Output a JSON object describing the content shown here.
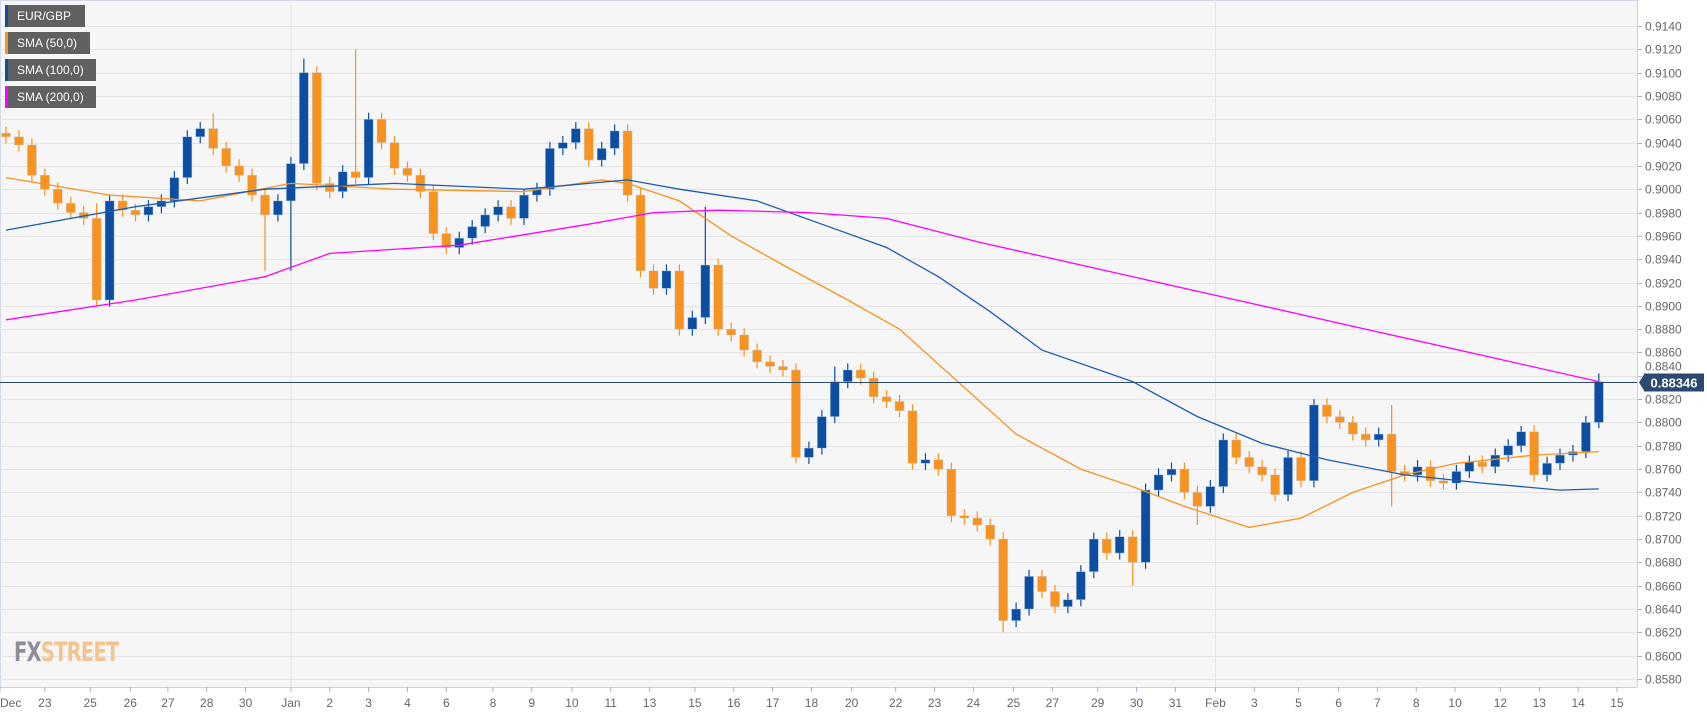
{
  "legend": [
    {
      "label": "EUR/GBP",
      "color": "#0b4ea2"
    },
    {
      "label": "SMA (50,0)",
      "color": "#f7931e"
    },
    {
      "label": "SMA (100,0)",
      "color": "#0b4ea2"
    },
    {
      "label": "SMA (200,0)",
      "color": "#ff00ff"
    }
  ],
  "logo": {
    "part1": "FX",
    "part2": "STREET"
  },
  "chart_data": {
    "type": "candlestick",
    "symbol": "EUR/GBP",
    "timeframe_note": "approximate bars read from screenshot",
    "current_price_label": "0.88346",
    "current_price": 0.88346,
    "ylim": [
      0.857,
      0.915
    ],
    "y_ticks": [
      "0.9140",
      "0.9120",
      "0.9100",
      "0.9080",
      "0.9060",
      "0.9040",
      "0.9020",
      "0.9000",
      "0.8980",
      "0.8960",
      "0.8940",
      "0.8920",
      "0.8900",
      "0.8880",
      "0.8860",
      "0.8840",
      "0.8820",
      "0.8800",
      "0.8780",
      "0.8760",
      "0.8740",
      "0.8720",
      "0.8700",
      "0.8680",
      "0.8660",
      "0.8640",
      "0.8620",
      "0.8600",
      "0.8580"
    ],
    "x_ticks": [
      {
        "label": "Dec",
        "bar": -0.5
      },
      {
        "label": "23",
        "bar": 3
      },
      {
        "label": "25",
        "bar": 6.5
      },
      {
        "label": "26",
        "bar": 9.6
      },
      {
        "label": "27",
        "bar": 12.5
      },
      {
        "label": "28",
        "bar": 15.5
      },
      {
        "label": "30",
        "bar": 18.5
      },
      {
        "label": "Jan",
        "bar": 22
      },
      {
        "label": "2",
        "bar": 25
      },
      {
        "label": "3",
        "bar": 28
      },
      {
        "label": "4",
        "bar": 31
      },
      {
        "label": "6",
        "bar": 34
      },
      {
        "label": "8",
        "bar": 37.6
      },
      {
        "label": "9",
        "bar": 40.6
      },
      {
        "label": "10",
        "bar": 43.7
      },
      {
        "label": "11",
        "bar": 46.7
      },
      {
        "label": "13",
        "bar": 49.7
      },
      {
        "label": "15",
        "bar": 53.2
      },
      {
        "label": "16",
        "bar": 56.2
      },
      {
        "label": "17",
        "bar": 59.2
      },
      {
        "label": "18",
        "bar": 62.2
      },
      {
        "label": "20",
        "bar": 65.3
      },
      {
        "label": "22",
        "bar": 68.7
      },
      {
        "label": "23",
        "bar": 71.7
      },
      {
        "label": "24",
        "bar": 74.7
      },
      {
        "label": "25",
        "bar": 77.8
      },
      {
        "label": "27",
        "bar": 80.8
      },
      {
        "label": "29",
        "bar": 84.3
      },
      {
        "label": "30",
        "bar": 87.3
      },
      {
        "label": "31",
        "bar": 90.3
      },
      {
        "label": "Feb",
        "bar": 93.4
      },
      {
        "label": "3",
        "bar": 96.4
      },
      {
        "label": "5",
        "bar": 99.8
      },
      {
        "label": "6",
        "bar": 102.9
      },
      {
        "label": "7",
        "bar": 105.9
      },
      {
        "label": "8",
        "bar": 108.9
      },
      {
        "label": "10",
        "bar": 111.9
      },
      {
        "label": "12",
        "bar": 115.4
      },
      {
        "label": "13",
        "bar": 118.4
      },
      {
        "label": "14",
        "bar": 121.4
      },
      {
        "label": "15",
        "bar": 124.4
      }
    ],
    "first_open": 0.9048,
    "closes": [
      0.9045,
      0.9038,
      0.9012,
      0.9,
      0.8988,
      0.898,
      0.8975,
      0.8905,
      0.899,
      0.8982,
      0.8978,
      0.8985,
      0.899,
      0.901,
      0.9045,
      0.9052,
      0.9035,
      0.902,
      0.9012,
      0.8995,
      0.8978,
      0.899,
      0.9022,
      0.91,
      0.9005,
      0.8998,
      0.9015,
      0.901,
      0.906,
      0.904,
      0.9018,
      0.9012,
      0.8998,
      0.8962,
      0.895,
      0.8958,
      0.8968,
      0.8978,
      0.8985,
      0.8975,
      0.8995,
      0.9,
      0.9035,
      0.904,
      0.9052,
      0.9025,
      0.9035,
      0.905,
      0.8995,
      0.893,
      0.8915,
      0.893,
      0.888,
      0.889,
      0.8935,
      0.888,
      0.8875,
      0.8862,
      0.8852,
      0.8848,
      0.8845,
      0.877,
      0.8778,
      0.8805,
      0.8835,
      0.8845,
      0.8838,
      0.8822,
      0.8818,
      0.881,
      0.8765,
      0.8768,
      0.876,
      0.872,
      0.8718,
      0.8712,
      0.87,
      0.863,
      0.864,
      0.8668,
      0.8655,
      0.8642,
      0.8648,
      0.8672,
      0.87,
      0.8688,
      0.8702,
      0.868,
      0.8742,
      0.8755,
      0.876,
      0.874,
      0.8728,
      0.8745,
      0.8785,
      0.877,
      0.8762,
      0.8755,
      0.8738,
      0.877,
      0.875,
      0.8815,
      0.8805,
      0.88,
      0.879,
      0.8785,
      0.879,
      0.8758,
      0.8755,
      0.8762,
      0.875,
      0.8748,
      0.8758,
      0.8766,
      0.8762,
      0.8772,
      0.878,
      0.8792,
      0.8755,
      0.8765,
      0.8772,
      0.8775,
      0.88,
      0.8835
    ],
    "default_wick": 0.0007,
    "high_overrides": {
      "7": 0.8988,
      "16": 0.9065,
      "23": 0.9112,
      "27": 0.912,
      "54": 0.8985,
      "64": 0.8848,
      "101": 0.882,
      "107": 0.8815,
      "117": 0.8797,
      "123": 0.8842
    },
    "low_overrides": {
      "7": 0.89,
      "20": 0.893,
      "22": 0.893,
      "61": 0.8765,
      "77": 0.862,
      "87": 0.866,
      "92": 0.8712,
      "107": 0.8728,
      "123": 0.8795
    },
    "sma": [
      {
        "name": "SMA (50,0)",
        "color": "#f7931e",
        "points": [
          [
            0,
            0.901
          ],
          [
            8,
            0.8995
          ],
          [
            15,
            0.899
          ],
          [
            22,
            0.9005
          ],
          [
            30,
            0.9
          ],
          [
            40,
            0.8998
          ],
          [
            46,
            0.9008
          ],
          [
            48,
            0.9005
          ],
          [
            52,
            0.899
          ],
          [
            56,
            0.896
          ],
          [
            60,
            0.8935
          ],
          [
            65,
            0.8905
          ],
          [
            69,
            0.888
          ],
          [
            73,
            0.884
          ],
          [
            78,
            0.879
          ],
          [
            83,
            0.876
          ],
          [
            87,
            0.8745
          ],
          [
            91,
            0.8728
          ],
          [
            96,
            0.871
          ],
          [
            100,
            0.8718
          ],
          [
            104,
            0.874
          ],
          [
            108,
            0.8755
          ],
          [
            112,
            0.8765
          ],
          [
            118,
            0.8772
          ],
          [
            123,
            0.8775
          ]
        ]
      },
      {
        "name": "SMA (100,0)",
        "color": "#1d5cb0",
        "points": [
          [
            0,
            0.8965
          ],
          [
            10,
            0.8985
          ],
          [
            20,
            0.9
          ],
          [
            30,
            0.9005
          ],
          [
            40,
            0.9
          ],
          [
            48,
            0.9008
          ],
          [
            52,
            0.9
          ],
          [
            58,
            0.899
          ],
          [
            63,
            0.897
          ],
          [
            68,
            0.895
          ],
          [
            72,
            0.8925
          ],
          [
            76,
            0.8895
          ],
          [
            80,
            0.8862
          ],
          [
            87,
            0.8835
          ],
          [
            92,
            0.8805
          ],
          [
            97,
            0.8782
          ],
          [
            102,
            0.8768
          ],
          [
            108,
            0.8755
          ],
          [
            114,
            0.8748
          ],
          [
            120,
            0.8742
          ],
          [
            123,
            0.8743
          ]
        ]
      },
      {
        "name": "SMA (200,0)",
        "color": "#ff00ff",
        "points": [
          [
            0,
            0.8888
          ],
          [
            10,
            0.8905
          ],
          [
            20,
            0.8925
          ],
          [
            25,
            0.8945
          ],
          [
            35,
            0.8952
          ],
          [
            45,
            0.897
          ],
          [
            50,
            0.898
          ],
          [
            55,
            0.8982
          ],
          [
            62,
            0.898
          ],
          [
            68,
            0.8975
          ],
          [
            75,
            0.8955
          ],
          [
            85,
            0.893
          ],
          [
            95,
            0.8905
          ],
          [
            105,
            0.888
          ],
          [
            115,
            0.8855
          ],
          [
            123,
            0.8835
          ]
        ]
      }
    ],
    "colors": {
      "bull": "#0b4ea2",
      "bear": "#f7931e",
      "grid": "#e4e4e4",
      "background": "#f6f6f6",
      "price_tag": "#2b4a70"
    }
  }
}
